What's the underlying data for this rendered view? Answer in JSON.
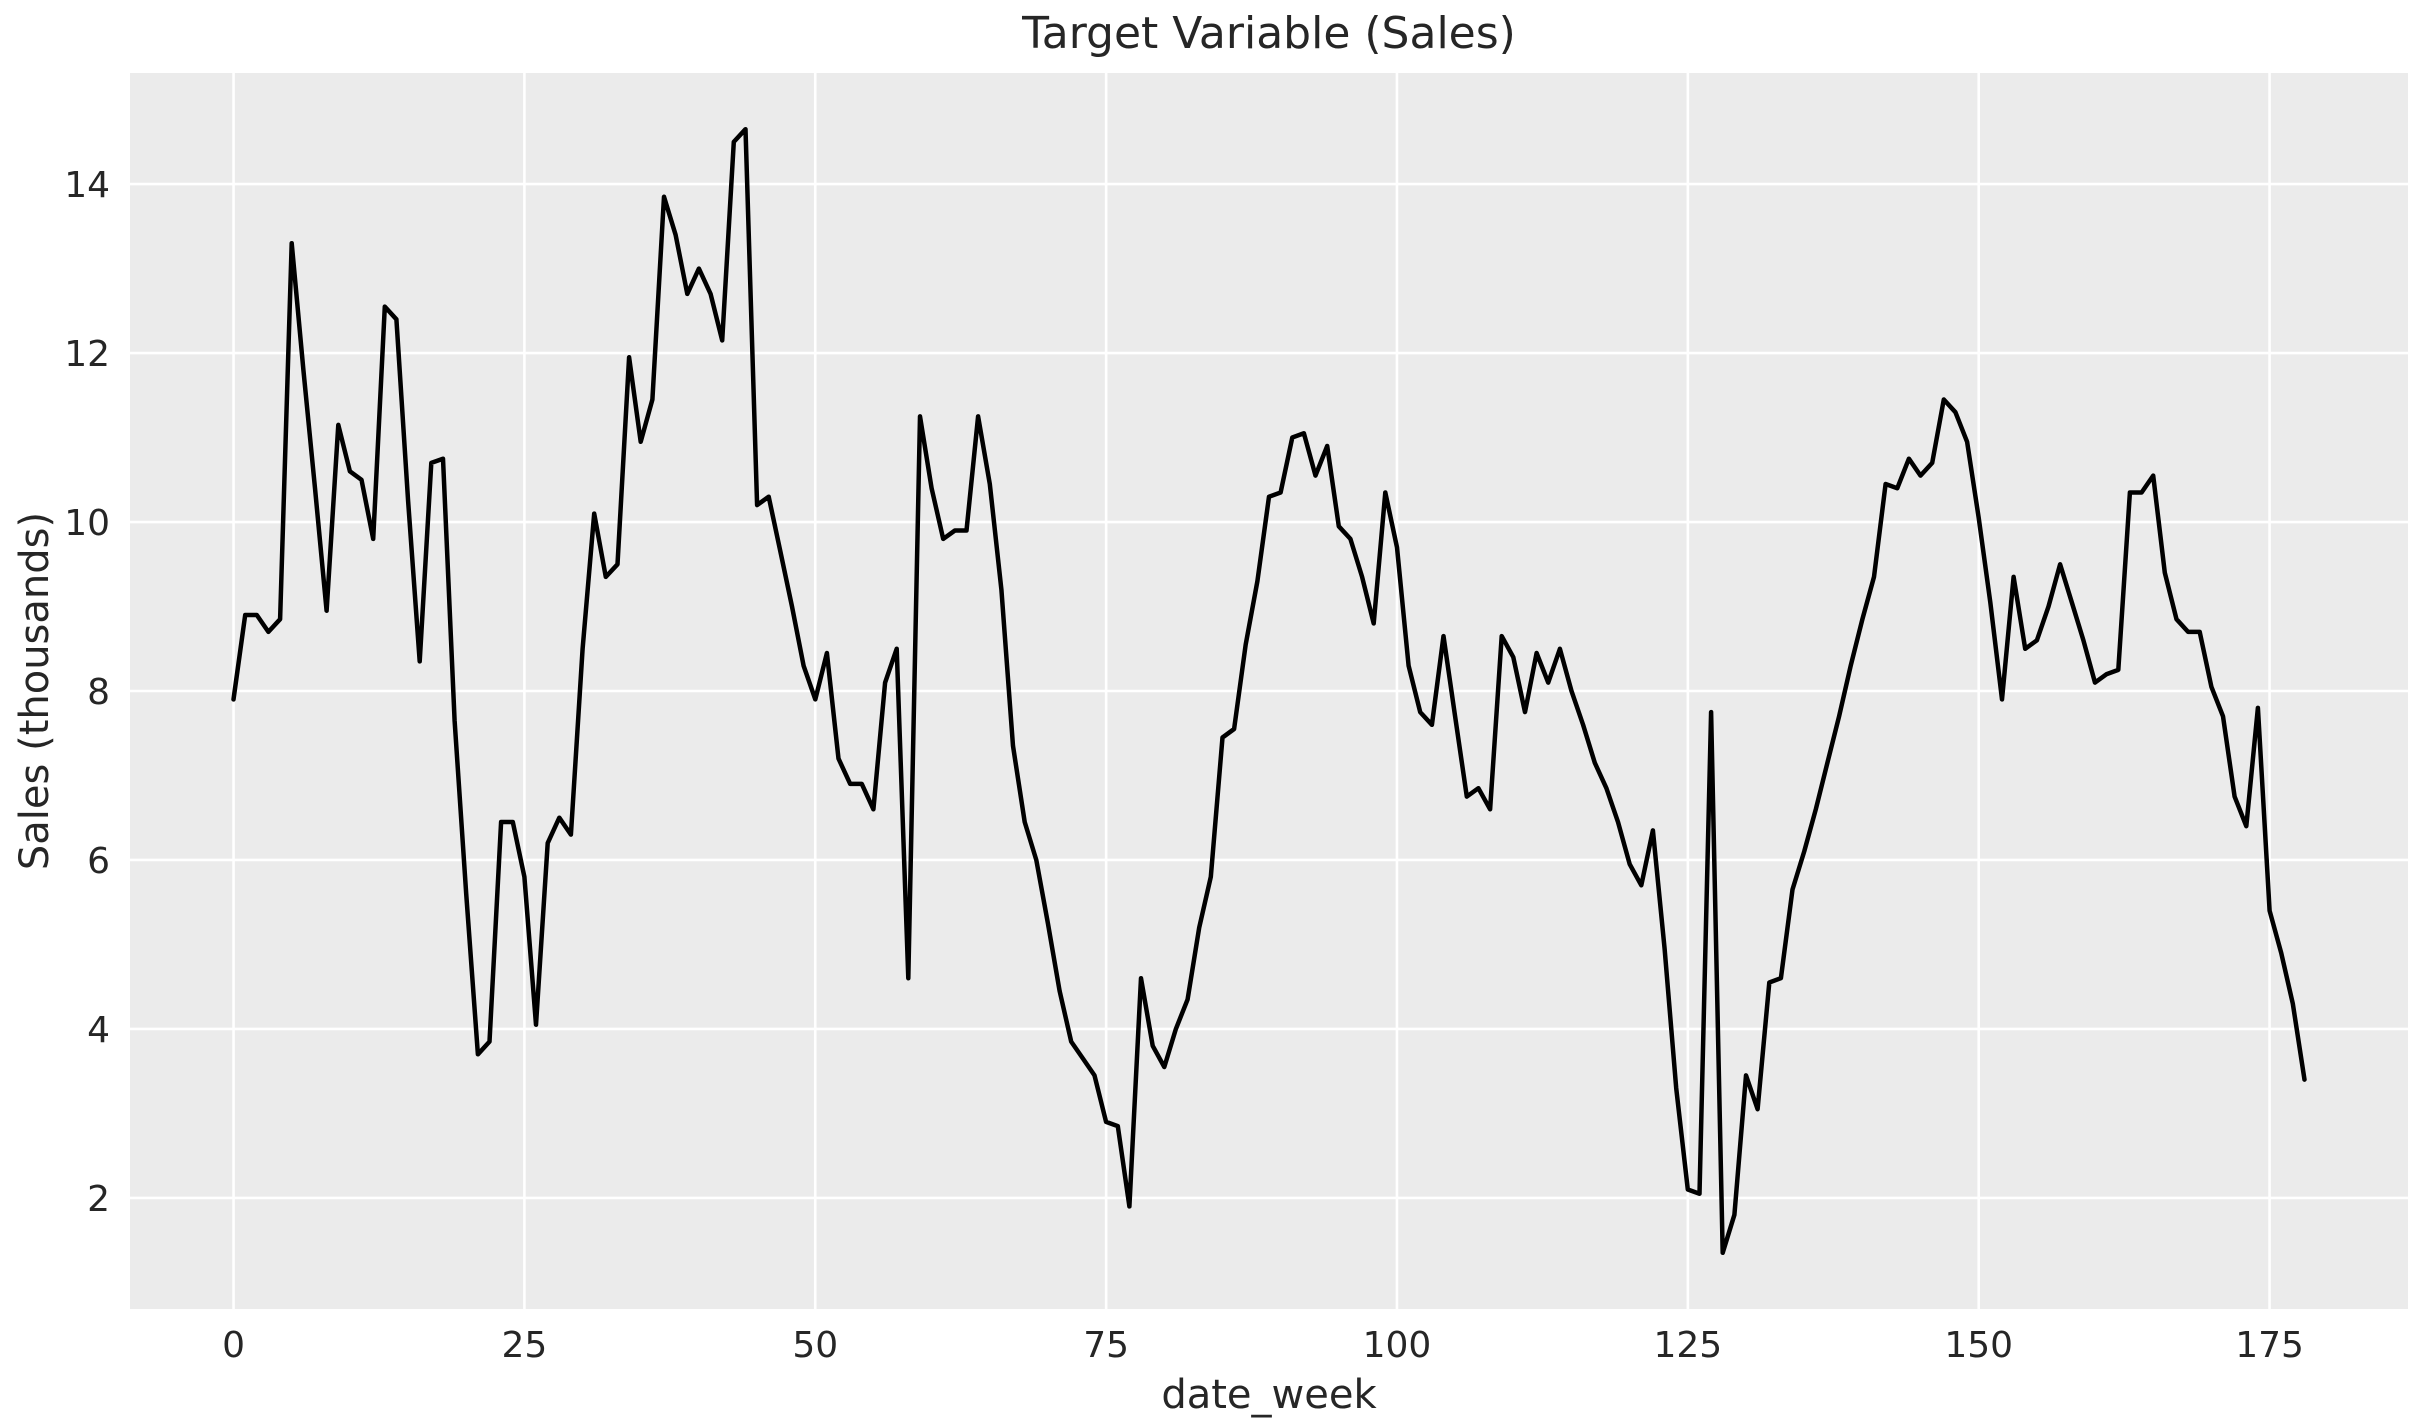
{
  "chart_data": {
    "type": "line",
    "title": "Target Variable (Sales)",
    "xlabel": "date_week",
    "ylabel": "Sales (thousands)",
    "x_tick_labels": [
      "0",
      "25",
      "50",
      "75",
      "100",
      "125",
      "150",
      "175"
    ],
    "x_ticks": [
      0,
      25,
      50,
      75,
      100,
      125,
      150,
      175
    ],
    "y_tick_labels": [
      "2",
      "4",
      "6",
      "8",
      "10",
      "12",
      "14"
    ],
    "y_ticks": [
      2,
      4,
      6,
      8,
      10,
      12,
      14
    ],
    "xlim": [
      -8.9,
      186.9
    ],
    "ylim": [
      0.685,
      15.315
    ],
    "grid": true,
    "legend_position": "none",
    "line_color": "#000000",
    "plot_background": "#ebebeb",
    "grid_color": "#ffffff",
    "text_color": "#262626",
    "series": [
      {
        "name": "Sales",
        "x_start": 0,
        "x_step": 1,
        "values": [
          7.9,
          8.9,
          8.9,
          8.7,
          8.85,
          13.3,
          11.8,
          10.4,
          8.95,
          11.15,
          10.6,
          10.5,
          9.8,
          12.55,
          12.4,
          10.25,
          8.35,
          10.7,
          10.75,
          7.65,
          5.6,
          3.7,
          3.85,
          6.45,
          6.45,
          5.8,
          4.05,
          6.2,
          6.5,
          6.3,
          8.5,
          10.1,
          9.35,
          9.5,
          11.95,
          10.95,
          11.45,
          13.85,
          13.4,
          12.7,
          13.0,
          12.7,
          12.15,
          14.5,
          14.65,
          10.2,
          10.3,
          9.65,
          9.0,
          8.3,
          7.9,
          8.45,
          7.2,
          6.9,
          6.9,
          6.6,
          8.1,
          8.5,
          4.6,
          11.25,
          10.4,
          9.8,
          9.9,
          9.9,
          11.25,
          10.45,
          9.2,
          7.35,
          6.45,
          6.0,
          5.25,
          4.45,
          3.85,
          3.65,
          3.45,
          2.9,
          2.85,
          1.9,
          4.6,
          3.8,
          3.55,
          4.0,
          4.35,
          5.2,
          5.8,
          7.45,
          7.55,
          8.55,
          9.3,
          10.3,
          10.35,
          11.0,
          11.05,
          10.55,
          10.9,
          9.95,
          9.8,
          9.35,
          8.8,
          10.35,
          9.7,
          8.3,
          7.75,
          7.6,
          8.65,
          7.7,
          6.75,
          6.85,
          6.6,
          8.65,
          8.4,
          7.75,
          8.45,
          8.1,
          8.5,
          8.0,
          7.6,
          7.15,
          6.85,
          6.45,
          5.95,
          5.7,
          6.35,
          4.95,
          3.3,
          2.1,
          2.05,
          7.75,
          1.35,
          1.8,
          3.45,
          3.05,
          4.55,
          4.6,
          5.65,
          6.1,
          6.6,
          7.15,
          7.7,
          8.3,
          8.85,
          9.35,
          10.45,
          10.4,
          10.75,
          10.55,
          10.7,
          11.45,
          11.3,
          10.95,
          10.05,
          9.05,
          7.9,
          9.35,
          8.5,
          8.6,
          9.0,
          9.5,
          9.05,
          8.6,
          8.1,
          8.2,
          8.25,
          10.35,
          10.35,
          10.55,
          9.4,
          8.85,
          8.7,
          8.7,
          8.05,
          7.7,
          6.75,
          6.4,
          7.8,
          5.4,
          4.9,
          4.3,
          3.4
        ]
      }
    ]
  }
}
